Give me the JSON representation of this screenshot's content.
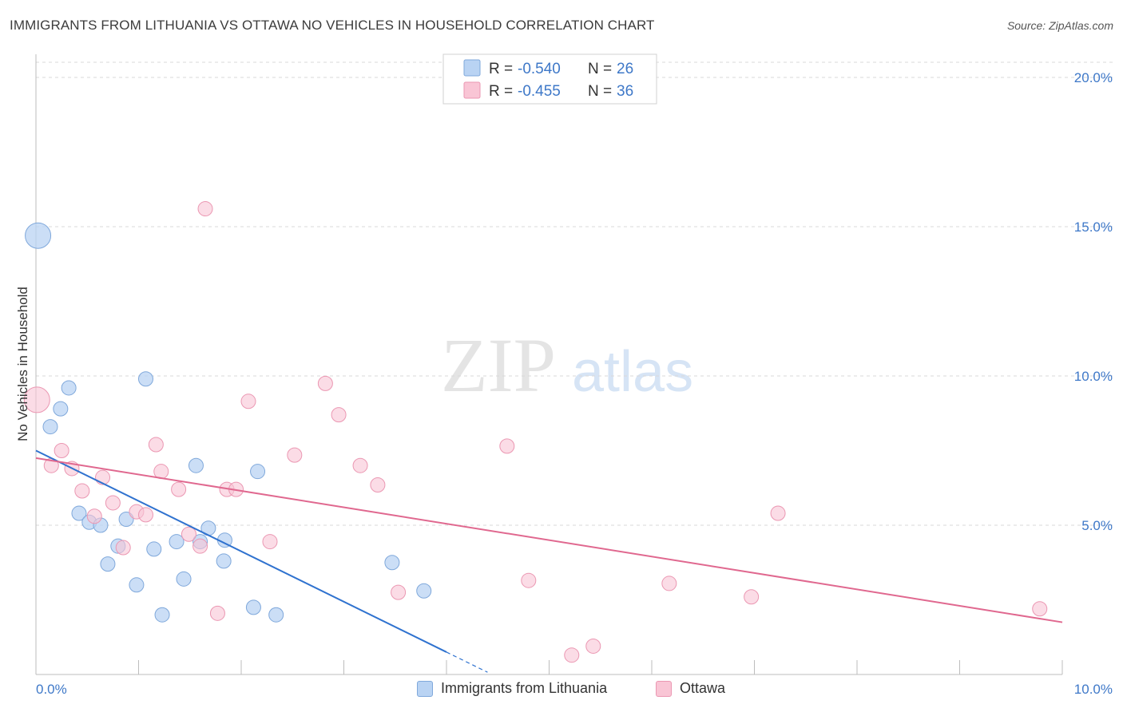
{
  "header": {
    "title": "IMMIGRANTS FROM LITHUANIA VS OTTAWA NO VEHICLES IN HOUSEHOLD CORRELATION CHART",
    "source": "Source: ZipAtlas.com"
  },
  "watermark": {
    "zip": "ZIP",
    "atlas": "atlas"
  },
  "stats_legend": [
    {
      "r_label": "R =",
      "r_value": "-0.540",
      "n_label": "N =",
      "n_value": "26"
    },
    {
      "r_label": "R =",
      "r_value": "-0.455",
      "n_label": "N =",
      "n_value": "36"
    }
  ],
  "colors": {
    "series1_fill": "#b9d3f3",
    "series1_stroke": "#7fa8db",
    "series1_line": "#2f72cf",
    "series2_fill": "#f9c5d5",
    "series2_stroke": "#eb97b2",
    "series2_line": "#e0688f",
    "tick_text": "#3e78c8",
    "grid": "#d9d9d9"
  },
  "chart_data": {
    "type": "scatter",
    "title": "IMMIGRANTS FROM LITHUANIA VS OTTAWA NO VEHICLES IN HOUSEHOLD CORRELATION CHART",
    "xlabel": "",
    "ylabel": "No Vehicles in Household",
    "xlim": [
      0,
      10
    ],
    "ylim": [
      0,
      20.5
    ],
    "x_tick_labels": [
      "0.0%",
      "10.0%"
    ],
    "y_ticks": [
      5,
      10,
      15,
      20
    ],
    "y_tick_labels": [
      "5.0%",
      "10.0%",
      "15.0%",
      "20.0%"
    ],
    "grid": true,
    "legend_placement": "bottom-center",
    "series": [
      {
        "name": "Immigrants from Lithuania",
        "r": -0.54,
        "n": 26,
        "trend": {
          "x0": 0,
          "y0": 7.5,
          "x1": 4.0,
          "y1": 0.75,
          "dash_to_x": 4.4
        },
        "points": [
          {
            "x": 0.02,
            "y": 14.7,
            "big": true
          },
          {
            "x": 0.14,
            "y": 8.3
          },
          {
            "x": 0.24,
            "y": 8.9
          },
          {
            "x": 0.32,
            "y": 9.6
          },
          {
            "x": 1.07,
            "y": 9.9
          },
          {
            "x": 0.42,
            "y": 5.4
          },
          {
            "x": 0.52,
            "y": 5.1
          },
          {
            "x": 0.63,
            "y": 5.0
          },
          {
            "x": 0.88,
            "y": 5.2
          },
          {
            "x": 0.8,
            "y": 4.3
          },
          {
            "x": 1.15,
            "y": 4.2
          },
          {
            "x": 0.7,
            "y": 3.7
          },
          {
            "x": 0.98,
            "y": 3.0
          },
          {
            "x": 1.37,
            "y": 4.45
          },
          {
            "x": 1.6,
            "y": 4.45
          },
          {
            "x": 1.68,
            "y": 4.9
          },
          {
            "x": 1.56,
            "y": 7.0
          },
          {
            "x": 1.84,
            "y": 4.5
          },
          {
            "x": 1.83,
            "y": 3.8
          },
          {
            "x": 2.16,
            "y": 6.8
          },
          {
            "x": 1.44,
            "y": 3.2
          },
          {
            "x": 1.23,
            "y": 2.0
          },
          {
            "x": 2.12,
            "y": 2.25
          },
          {
            "x": 2.34,
            "y": 2.0
          },
          {
            "x": 3.47,
            "y": 3.75
          },
          {
            "x": 3.78,
            "y": 2.8
          }
        ]
      },
      {
        "name": "Ottawa",
        "r": -0.455,
        "n": 36,
        "trend": {
          "x0": 0,
          "y0": 7.25,
          "x1": 10.0,
          "y1": 1.75
        },
        "points": [
          {
            "x": 0.01,
            "y": 9.2,
            "big": true
          },
          {
            "x": 0.15,
            "y": 7.0
          },
          {
            "x": 0.25,
            "y": 7.5
          },
          {
            "x": 0.35,
            "y": 6.9
          },
          {
            "x": 0.45,
            "y": 6.15
          },
          {
            "x": 0.57,
            "y": 5.3
          },
          {
            "x": 0.65,
            "y": 6.6
          },
          {
            "x": 0.75,
            "y": 5.75
          },
          {
            "x": 0.85,
            "y": 4.25
          },
          {
            "x": 0.98,
            "y": 5.45
          },
          {
            "x": 1.07,
            "y": 5.35
          },
          {
            "x": 1.17,
            "y": 7.7
          },
          {
            "x": 1.22,
            "y": 6.8
          },
          {
            "x": 1.39,
            "y": 6.2
          },
          {
            "x": 1.49,
            "y": 4.7
          },
          {
            "x": 1.6,
            "y": 4.3
          },
          {
            "x": 1.65,
            "y": 15.6
          },
          {
            "x": 1.77,
            "y": 2.05
          },
          {
            "x": 1.86,
            "y": 6.2
          },
          {
            "x": 1.95,
            "y": 6.2
          },
          {
            "x": 2.07,
            "y": 9.15
          },
          {
            "x": 2.28,
            "y": 4.45
          },
          {
            "x": 2.52,
            "y": 7.35
          },
          {
            "x": 2.82,
            "y": 9.75
          },
          {
            "x": 2.95,
            "y": 8.7
          },
          {
            "x": 3.16,
            "y": 7.0
          },
          {
            "x": 3.33,
            "y": 6.35
          },
          {
            "x": 3.53,
            "y": 2.75
          },
          {
            "x": 4.59,
            "y": 7.65
          },
          {
            "x": 4.8,
            "y": 3.15
          },
          {
            "x": 5.22,
            "y": 0.65
          },
          {
            "x": 5.43,
            "y": 0.95
          },
          {
            "x": 6.17,
            "y": 3.05
          },
          {
            "x": 6.97,
            "y": 2.6
          },
          {
            "x": 7.23,
            "y": 5.4
          },
          {
            "x": 9.78,
            "y": 2.2
          }
        ]
      }
    ]
  }
}
